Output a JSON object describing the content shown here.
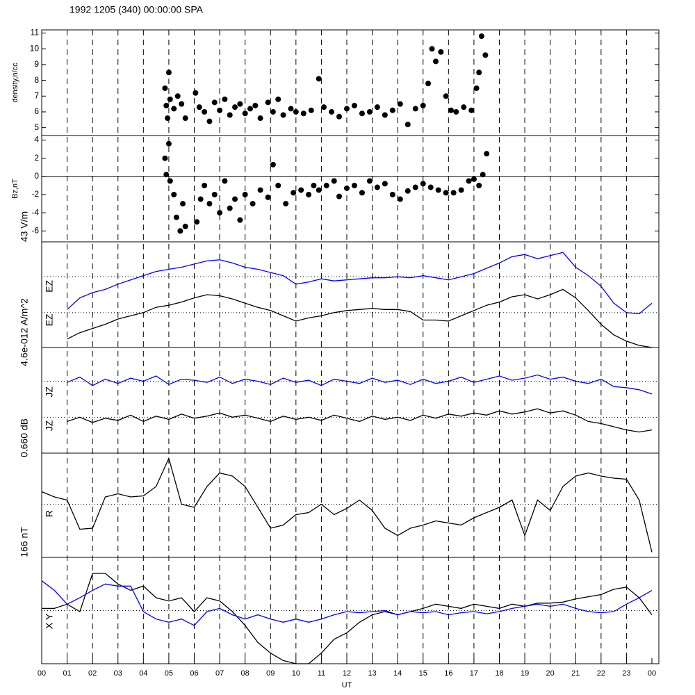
{
  "title": "1992 1205 (340) 00:00:00 SPA",
  "xaxis": {
    "label": "UT",
    "xlim": [
      0,
      24
    ],
    "xticks": [
      {
        "value": 0,
        "label": "00"
      },
      {
        "value": 1,
        "label": "01"
      },
      {
        "value": 2,
        "label": "02"
      },
      {
        "value": 3,
        "label": "03"
      },
      {
        "value": 4,
        "label": "04"
      },
      {
        "value": 5,
        "label": "05"
      },
      {
        "value": 6,
        "label": "06"
      },
      {
        "value": 7,
        "label": "07"
      },
      {
        "value": 8,
        "label": "08"
      },
      {
        "value": 9,
        "label": "09"
      },
      {
        "value": 10,
        "label": "10"
      },
      {
        "value": 11,
        "label": "11"
      },
      {
        "value": 12,
        "label": "12"
      },
      {
        "value": 13,
        "label": "13"
      },
      {
        "value": 14,
        "label": "14"
      },
      {
        "value": 15,
        "label": "15"
      },
      {
        "value": 16,
        "label": "16"
      },
      {
        "value": 17,
        "label": "17"
      },
      {
        "value": 18,
        "label": "18"
      },
      {
        "value": 19,
        "label": "19"
      },
      {
        "value": 20,
        "label": "20"
      },
      {
        "value": 21,
        "label": "21"
      },
      {
        "value": 22,
        "label": "22"
      },
      {
        "value": 23,
        "label": "23"
      },
      {
        "value": 24,
        "label": "00"
      }
    ],
    "grid": "dashed"
  },
  "chart_data": [
    {
      "type": "scatter",
      "ylabel": "density,n/cc",
      "color": "#000000",
      "ylim": [
        4.5,
        11.2
      ],
      "yticks": [
        5,
        6,
        7,
        8,
        9,
        10,
        11
      ],
      "x": [
        4.85,
        4.9,
        4.95,
        5.0,
        5.05,
        5.2,
        5.35,
        5.5,
        5.65,
        6.05,
        6.2,
        6.4,
        6.6,
        6.8,
        7.0,
        7.2,
        7.4,
        7.6,
        7.8,
        8.0,
        8.2,
        8.4,
        8.6,
        8.9,
        9.1,
        9.3,
        9.5,
        9.8,
        10.0,
        10.3,
        10.6,
        10.9,
        11.1,
        11.4,
        11.7,
        12.0,
        12.3,
        12.6,
        12.9,
        13.2,
        13.5,
        13.8,
        14.1,
        14.4,
        14.7,
        15.0,
        15.2,
        15.35,
        15.5,
        15.7,
        15.9,
        16.1,
        16.3,
        16.6,
        16.9,
        17.1,
        17.2,
        17.3,
        17.45
      ],
      "y": [
        7.5,
        6.4,
        5.6,
        8.5,
        6.8,
        6.2,
        7.0,
        6.5,
        5.6,
        7.2,
        6.3,
        6.0,
        5.4,
        6.6,
        6.1,
        6.8,
        5.8,
        6.3,
        6.5,
        5.9,
        6.2,
        6.4,
        5.6,
        6.6,
        6.0,
        6.8,
        5.8,
        6.2,
        6.0,
        5.9,
        6.1,
        8.1,
        6.3,
        6.0,
        5.7,
        6.2,
        6.4,
        5.9,
        6.0,
        6.3,
        5.8,
        6.1,
        6.5,
        5.2,
        6.2,
        6.4,
        7.8,
        10.0,
        9.2,
        9.8,
        7.0,
        6.1,
        6.0,
        6.3,
        6.1,
        7.5,
        8.5,
        10.8,
        9.6
      ]
    },
    {
      "type": "scatter",
      "ylabel": "Bz,nT",
      "color": "#000000",
      "ylim": [
        -7.2,
        4.5
      ],
      "yticks": [
        -6,
        -4,
        -2,
        0,
        2,
        4
      ],
      "reference_lines": [
        0
      ],
      "reference_style": "solid",
      "x": [
        4.85,
        4.9,
        5.0,
        5.05,
        5.2,
        5.3,
        5.45,
        5.55,
        5.65,
        6.1,
        6.25,
        6.4,
        6.6,
        6.8,
        7.0,
        7.2,
        7.4,
        7.6,
        7.8,
        8.0,
        8.3,
        8.6,
        8.9,
        9.1,
        9.3,
        9.6,
        9.9,
        10.2,
        10.5,
        10.7,
        10.9,
        11.2,
        11.5,
        11.7,
        12.0,
        12.3,
        12.6,
        12.9,
        13.2,
        13.5,
        13.8,
        14.1,
        14.4,
        14.7,
        15.0,
        15.3,
        15.6,
        15.9,
        16.2,
        16.5,
        16.8,
        17.0,
        17.2,
        17.35,
        17.5
      ],
      "y": [
        2.0,
        0.2,
        3.6,
        -0.5,
        -2.0,
        -4.5,
        -6.0,
        -3.0,
        -5.5,
        -5.0,
        -2.5,
        -1.0,
        -3.0,
        -2.0,
        -4.0,
        -0.5,
        -3.5,
        -2.5,
        -4.8,
        -2.0,
        -3.0,
        -1.5,
        -2.3,
        1.3,
        -1.0,
        -3.0,
        -1.8,
        -1.5,
        -2.0,
        -1.0,
        -1.5,
        -1.0,
        -0.5,
        -2.2,
        -1.3,
        -1.0,
        -1.8,
        -0.5,
        -1.2,
        -0.8,
        -2.0,
        -2.5,
        -1.6,
        -1.2,
        -0.8,
        -1.2,
        -1.5,
        -1.8,
        -1.8,
        -1.5,
        -0.5,
        -0.3,
        -1.0,
        0.2,
        2.5
      ]
    },
    {
      "type": "line",
      "scale_label": "43 V/m",
      "ylim": [
        0,
        1
      ],
      "reference_lines": [
        0.67,
        0.33
      ],
      "reference_style": "dotted",
      "x": [
        1,
        1.5,
        2,
        2.5,
        3,
        3.5,
        4,
        4.5,
        5,
        5.5,
        6,
        6.5,
        7,
        7.5,
        8,
        8.5,
        9,
        9.5,
        10,
        10.5,
        11,
        11.5,
        12,
        12.5,
        13,
        13.5,
        14,
        14.5,
        15,
        15.5,
        16,
        16.5,
        17,
        17.5,
        18,
        18.5,
        19,
        19.5,
        20,
        20.5,
        21,
        21.5,
        22,
        22.5,
        23,
        23.5,
        24
      ],
      "series": [
        {
          "name": "EZ",
          "color": "#0000ff",
          "values": [
            0.36,
            0.47,
            0.52,
            0.55,
            0.6,
            0.64,
            0.68,
            0.72,
            0.74,
            0.76,
            0.79,
            0.82,
            0.83,
            0.8,
            0.76,
            0.74,
            0.71,
            0.68,
            0.6,
            0.62,
            0.65,
            0.63,
            0.64,
            0.65,
            0.66,
            0.66,
            0.67,
            0.66,
            0.68,
            0.66,
            0.64,
            0.67,
            0.7,
            0.75,
            0.8,
            0.86,
            0.88,
            0.84,
            0.87,
            0.9,
            0.76,
            0.68,
            0.58,
            0.42,
            0.33,
            0.32,
            0.42
          ]
        },
        {
          "name": "EZ",
          "color": "#000000",
          "values": [
            0.08,
            0.14,
            0.18,
            0.22,
            0.27,
            0.3,
            0.33,
            0.38,
            0.4,
            0.43,
            0.47,
            0.5,
            0.49,
            0.46,
            0.42,
            0.38,
            0.35,
            0.3,
            0.25,
            0.28,
            0.3,
            0.33,
            0.35,
            0.36,
            0.37,
            0.36,
            0.36,
            0.34,
            0.26,
            0.26,
            0.25,
            0.3,
            0.35,
            0.4,
            0.43,
            0.48,
            0.5,
            0.46,
            0.5,
            0.55,
            0.47,
            0.35,
            0.22,
            0.12,
            0.06,
            0.02,
            0
          ]
        }
      ]
    },
    {
      "type": "line",
      "scale_label": "4.6e-012 A/m^2",
      "ylim": [
        0,
        1
      ],
      "reference_lines": [
        0.68,
        0.34
      ],
      "reference_style": "dotted",
      "x": [
        1,
        1.5,
        2,
        2.5,
        3,
        3.5,
        4,
        4.5,
        5,
        5.5,
        6,
        6.5,
        7,
        7.5,
        8,
        8.5,
        9,
        9.5,
        10,
        10.5,
        11,
        11.5,
        12,
        12.5,
        13,
        13.5,
        14,
        14.5,
        15,
        15.5,
        16,
        16.5,
        17,
        17.5,
        18,
        18.5,
        19,
        19.5,
        20,
        20.5,
        21,
        21.5,
        22,
        22.5,
        23,
        23.5,
        24
      ],
      "series": [
        {
          "name": "JZ",
          "color": "#0000ff",
          "values": [
            0.67,
            0.72,
            0.64,
            0.7,
            0.66,
            0.71,
            0.68,
            0.73,
            0.65,
            0.7,
            0.69,
            0.67,
            0.72,
            0.66,
            0.7,
            0.68,
            0.65,
            0.71,
            0.67,
            0.69,
            0.64,
            0.7,
            0.68,
            0.66,
            0.71,
            0.67,
            0.69,
            0.65,
            0.7,
            0.66,
            0.68,
            0.72,
            0.67,
            0.7,
            0.73,
            0.69,
            0.71,
            0.74,
            0.7,
            0.72,
            0.68,
            0.66,
            0.7,
            0.63,
            0.62,
            0.6,
            0.56
          ]
        },
        {
          "name": "JZ",
          "color": "#000000",
          "values": [
            0.3,
            0.34,
            0.29,
            0.33,
            0.31,
            0.36,
            0.3,
            0.35,
            0.32,
            0.37,
            0.33,
            0.35,
            0.38,
            0.34,
            0.36,
            0.33,
            0.3,
            0.35,
            0.32,
            0.34,
            0.31,
            0.36,
            0.33,
            0.3,
            0.35,
            0.32,
            0.34,
            0.31,
            0.36,
            0.33,
            0.37,
            0.35,
            0.38,
            0.36,
            0.4,
            0.37,
            0.39,
            0.42,
            0.38,
            0.4,
            0.36,
            0.3,
            0.28,
            0.25,
            0.22,
            0.2,
            0.22
          ]
        }
      ]
    },
    {
      "type": "line",
      "scale_label": "0.660 dB",
      "ylim": [
        0,
        1
      ],
      "reference_lines": [
        0.51
      ],
      "reference_style": "dotted",
      "x": [
        0,
        0.5,
        1,
        1.5,
        2,
        2.5,
        3,
        3.5,
        4,
        4.5,
        5,
        5.5,
        6,
        6.5,
        7,
        7.5,
        8,
        8.5,
        9,
        9.5,
        10,
        10.5,
        11,
        11.5,
        12,
        12.5,
        13,
        13.5,
        14,
        14.5,
        15,
        15.5,
        16,
        16.5,
        17,
        17.5,
        18,
        18.5,
        19,
        19.5,
        20,
        20.5,
        21,
        21.5,
        22,
        22.5,
        23,
        23.5,
        24
      ],
      "series": [
        {
          "name": "R",
          "color": "#000000",
          "values": [
            0.63,
            0.58,
            0.55,
            0.27,
            0.28,
            0.58,
            0.61,
            0.58,
            0.59,
            0.68,
            0.95,
            0.51,
            0.48,
            0.68,
            0.81,
            0.78,
            0.68,
            0.48,
            0.28,
            0.31,
            0.41,
            0.43,
            0.51,
            0.41,
            0.47,
            0.55,
            0.45,
            0.28,
            0.21,
            0.28,
            0.31,
            0.35,
            0.33,
            0.31,
            0.38,
            0.43,
            0.48,
            0.55,
            0.21,
            0.55,
            0.45,
            0.68,
            0.78,
            0.81,
            0.78,
            0.76,
            0.75,
            0.55,
            0.05
          ]
        }
      ]
    },
    {
      "type": "line",
      "scale_label": "166 nT",
      "label": "X Y",
      "ylim": [
        0,
        1
      ],
      "reference_lines": [
        0.5
      ],
      "reference_style": "dotted",
      "x": [
        0,
        0.5,
        1,
        1.5,
        2,
        2.5,
        3,
        3.5,
        4,
        4.5,
        5,
        5.5,
        6,
        6.5,
        7,
        7.5,
        8,
        8.5,
        9,
        9.5,
        10,
        10.5,
        11,
        11.5,
        12,
        12.5,
        13,
        13.5,
        14,
        14.5,
        15,
        15.5,
        16,
        16.5,
        17,
        17.5,
        18,
        18.5,
        19,
        19.5,
        20,
        20.5,
        21,
        21.5,
        22,
        22.5,
        23,
        23.5,
        24
      ],
      "series": [
        {
          "color": "#000000",
          "values": [
            0.52,
            0.52,
            0.56,
            0.49,
            0.85,
            0.85,
            0.75,
            0.69,
            0.73,
            0.62,
            0.59,
            0.62,
            0.49,
            0.62,
            0.59,
            0.49,
            0.36,
            0.2,
            0.1,
            0.03,
            0,
            0,
            0.1,
            0.23,
            0.29,
            0.39,
            0.46,
            0.49,
            0.46,
            0.49,
            0.52,
            0.56,
            0.54,
            0.52,
            0.56,
            0.54,
            0.52,
            0.56,
            0.54,
            0.57,
            0.57,
            0.58,
            0.61,
            0.63,
            0.65,
            0.7,
            0.72,
            0.62,
            0.46
          ]
        },
        {
          "color": "#0000ff",
          "values": [
            0.78,
            0.69,
            0.56,
            0.62,
            0.69,
            0.75,
            0.73,
            0.73,
            0.49,
            0.42,
            0.39,
            0.42,
            0.36,
            0.49,
            0.52,
            0.46,
            0.42,
            0.46,
            0.42,
            0.39,
            0.42,
            0.39,
            0.42,
            0.46,
            0.49,
            0.48,
            0.49,
            0.5,
            0.46,
            0.49,
            0.48,
            0.49,
            0.46,
            0.48,
            0.49,
            0.47,
            0.49,
            0.52,
            0.54,
            0.56,
            0.54,
            0.56,
            0.52,
            0.49,
            0.48,
            0.49,
            0.56,
            0.62,
            0.69
          ]
        }
      ]
    }
  ]
}
